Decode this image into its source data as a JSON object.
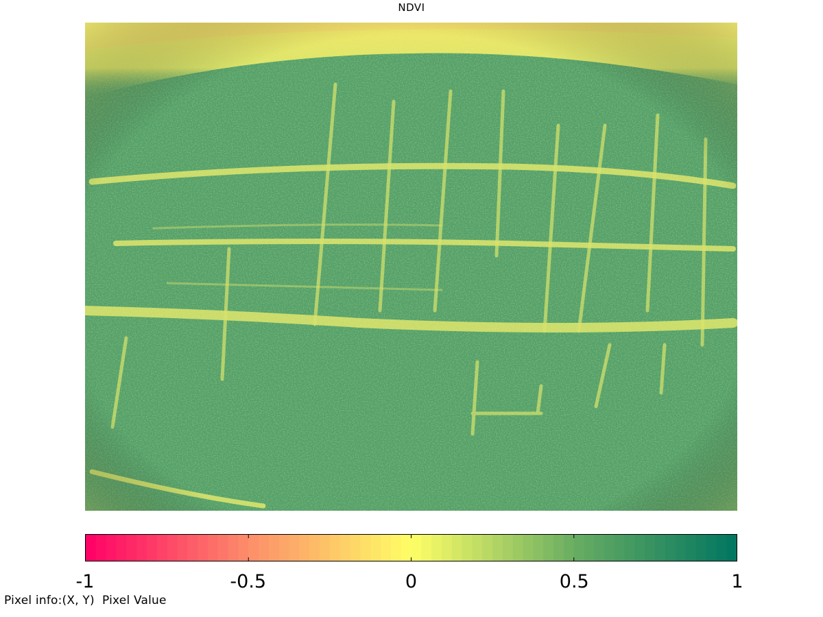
{
  "figure": {
    "title": "NDVI"
  },
  "colorbar": {
    "range": [
      -1,
      1
    ],
    "ticks": [
      {
        "value": -1,
        "label": "-1"
      },
      {
        "value": -0.5,
        "label": "-0.5"
      },
      {
        "value": 0,
        "label": "0"
      },
      {
        "value": 0.5,
        "label": "0.5"
      },
      {
        "value": 1,
        "label": "1"
      }
    ],
    "colormap": [
      {
        "value": -1,
        "color": "#ff0066"
      },
      {
        "value": -0.5,
        "color": "#fc8d6a"
      },
      {
        "value": 0,
        "color": "#ffff66"
      },
      {
        "value": 0.5,
        "color": "#69ad62"
      },
      {
        "value": 1,
        "color": "#007560"
      }
    ]
  },
  "status_bar": {
    "pixel_info_label": "Pixel info:",
    "pixel_info_value": "(X, Y)  Pixel Value"
  }
}
